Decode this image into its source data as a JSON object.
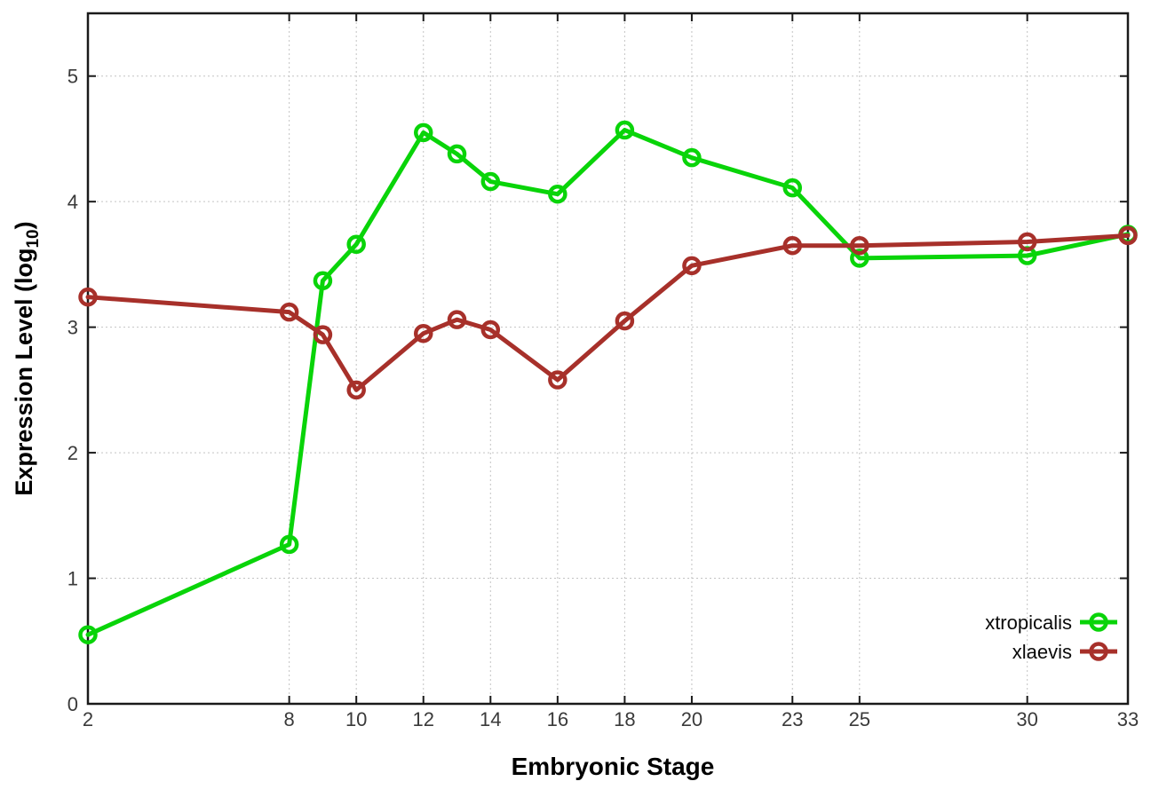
{
  "figure": {
    "background": "#ffffff",
    "xlabel": "Embryonic Stage",
    "ylabel_parts": {
      "main": "Expression Level (log",
      "sub": "10",
      "close": ")"
    }
  },
  "chart_data": {
    "type": "line",
    "title": "",
    "xlabel": "Embryonic Stage",
    "ylabel": "Expression Level (log10)",
    "x": [
      2,
      8,
      9,
      10,
      12,
      13,
      14,
      16,
      18,
      20,
      23,
      25,
      30,
      33
    ],
    "series": [
      {
        "name": "xtropicalis",
        "color": "#09d409",
        "values": [
          0.55,
          1.27,
          3.37,
          3.66,
          4.55,
          4.38,
          4.16,
          4.06,
          4.57,
          4.35,
          4.11,
          3.55,
          3.57,
          3.74
        ]
      },
      {
        "name": "xlaevis",
        "color": "#a7302a",
        "values": [
          3.24,
          3.12,
          2.94,
          2.5,
          2.95,
          3.06,
          2.98,
          2.58,
          3.05,
          3.49,
          3.65,
          3.65,
          3.68,
          3.73
        ]
      }
    ],
    "x_ticks": [
      2,
      8,
      10,
      12,
      14,
      16,
      18,
      20,
      23,
      25,
      30,
      33
    ],
    "y_ticks": [
      0,
      1,
      2,
      3,
      4,
      5
    ],
    "xlim": [
      2,
      33
    ],
    "ylim": [
      0,
      5.5
    ],
    "grid": true,
    "grid_style": "dotted",
    "marker": "open-circle",
    "legend_position": "bottom-right",
    "frame_color": "#1a1a1a",
    "grid_color": "#c3c3c3"
  }
}
